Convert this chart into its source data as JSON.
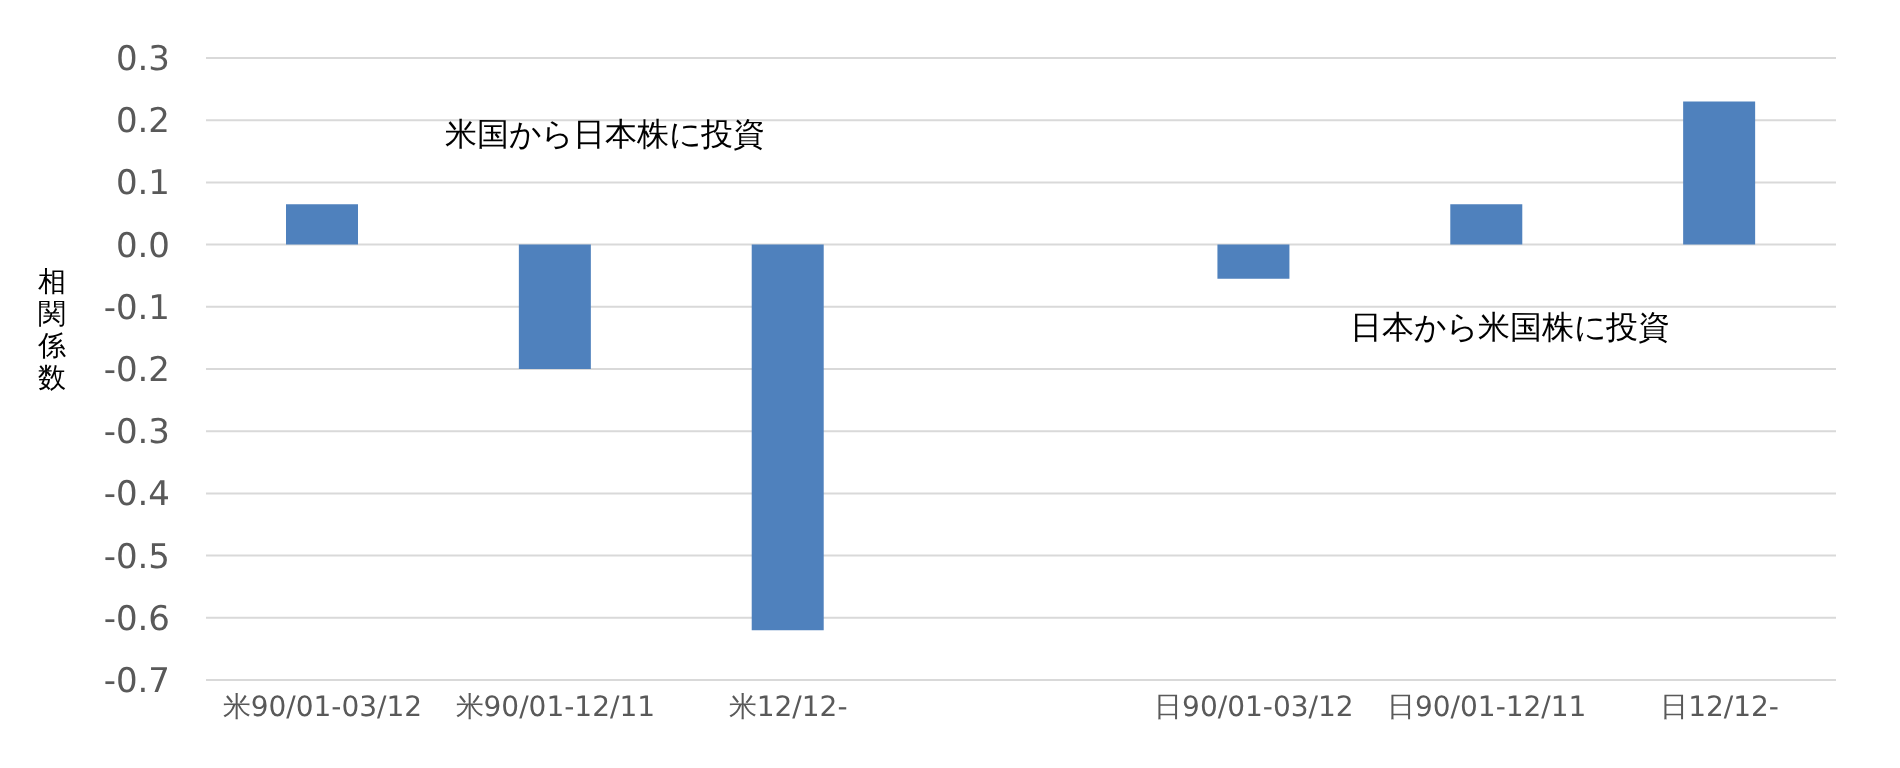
{
  "chart_data": {
    "type": "bar",
    "ylabel": "相関係数",
    "categories": [
      "米90/01-03/12",
      "米90/01-12/11",
      "米12/12-",
      null,
      "日90/01-03/12",
      "日90/01-12/11",
      "日12/12-"
    ],
    "values": [
      0.065,
      -0.2,
      -0.62,
      null,
      -0.055,
      0.065,
      0.23
    ],
    "color": "#4f81bd",
    "ylim": [
      -0.7,
      0.3
    ],
    "yticks": [
      {
        "value": -0.7,
        "label": "-0.7"
      },
      {
        "value": -0.6,
        "label": "-0.6"
      },
      {
        "value": -0.5,
        "label": "-0.5"
      },
      {
        "value": -0.4,
        "label": "-0.4"
      },
      {
        "value": -0.3,
        "label": "-0.3"
      },
      {
        "value": -0.2,
        "label": "-0.2"
      },
      {
        "value": -0.1,
        "label": "-0.1"
      },
      {
        "value": 0,
        "label": "0.0"
      },
      {
        "value": 0.1,
        "label": "0.1"
      },
      {
        "value": 0.2,
        "label": "0.2"
      },
      {
        "value": 0.3,
        "label": "0.3"
      }
    ],
    "grid": "y",
    "annotations": [
      "米国から日本株に投資",
      "日本から米国株に投資"
    ]
  }
}
